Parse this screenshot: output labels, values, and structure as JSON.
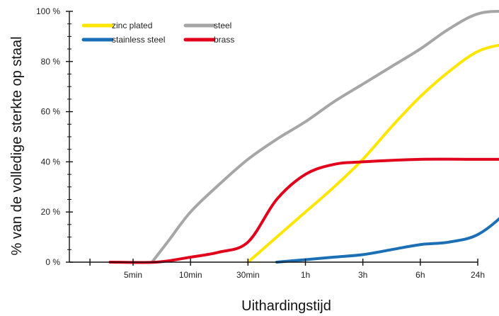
{
  "chart_data": {
    "type": "line",
    "title": "",
    "xlabel": "Uithardingstijd",
    "ylabel": "% van de volledige sterkte op staal",
    "x_ticks": [
      "5min",
      "10min",
      "30min",
      "1h",
      "3h",
      "6h",
      "24h"
    ],
    "y_ticks": [
      "0 %",
      "20 %",
      "40 %",
      "60 %",
      "80 %",
      "100 %"
    ],
    "ylim": [
      0,
      100
    ],
    "grid": false,
    "legend_position": "top-left",
    "series": [
      {
        "name": "zinc plated",
        "color": "#FFE600",
        "points": [
          [
            2,
            0
          ],
          [
            2.5,
            10
          ],
          [
            3,
            20
          ],
          [
            3.5,
            30
          ],
          [
            4,
            41
          ],
          [
            4.5,
            54
          ],
          [
            5,
            66
          ],
          [
            5.5,
            76
          ],
          [
            6,
            84
          ],
          [
            6.5,
            87
          ],
          [
            7,
            88
          ]
        ]
      },
      {
        "name": "steel",
        "color": "#A6A6A6",
        "points": [
          [
            0.33,
            0
          ],
          [
            0.6,
            8
          ],
          [
            1,
            20
          ],
          [
            1.5,
            31
          ],
          [
            2,
            41
          ],
          [
            2.5,
            49
          ],
          [
            3,
            56
          ],
          [
            3.5,
            64
          ],
          [
            4,
            71
          ],
          [
            4.5,
            78
          ],
          [
            5,
            85
          ],
          [
            5.5,
            93
          ],
          [
            6,
            99
          ],
          [
            6.5,
            100
          ],
          [
            7,
            99
          ]
        ]
      },
      {
        "name": "stainless steel",
        "color": "#1A6FB5",
        "points": [
          [
            2.5,
            0
          ],
          [
            3,
            1
          ],
          [
            3.5,
            2
          ],
          [
            4,
            3
          ],
          [
            4.5,
            5
          ],
          [
            5,
            7
          ],
          [
            5.5,
            8
          ],
          [
            6,
            11
          ],
          [
            6.5,
            20
          ],
          [
            7,
            33
          ]
        ]
      },
      {
        "name": "brass",
        "color": "#E0001B",
        "points": [
          [
            -0.4,
            0
          ],
          [
            0.4,
            0
          ],
          [
            1,
            2
          ],
          [
            1.5,
            4
          ],
          [
            2,
            8
          ],
          [
            2.5,
            25
          ],
          [
            3,
            35
          ],
          [
            3.5,
            39
          ],
          [
            4,
            40
          ],
          [
            5,
            41
          ],
          [
            6,
            41
          ],
          [
            7,
            41
          ]
        ]
      }
    ]
  }
}
